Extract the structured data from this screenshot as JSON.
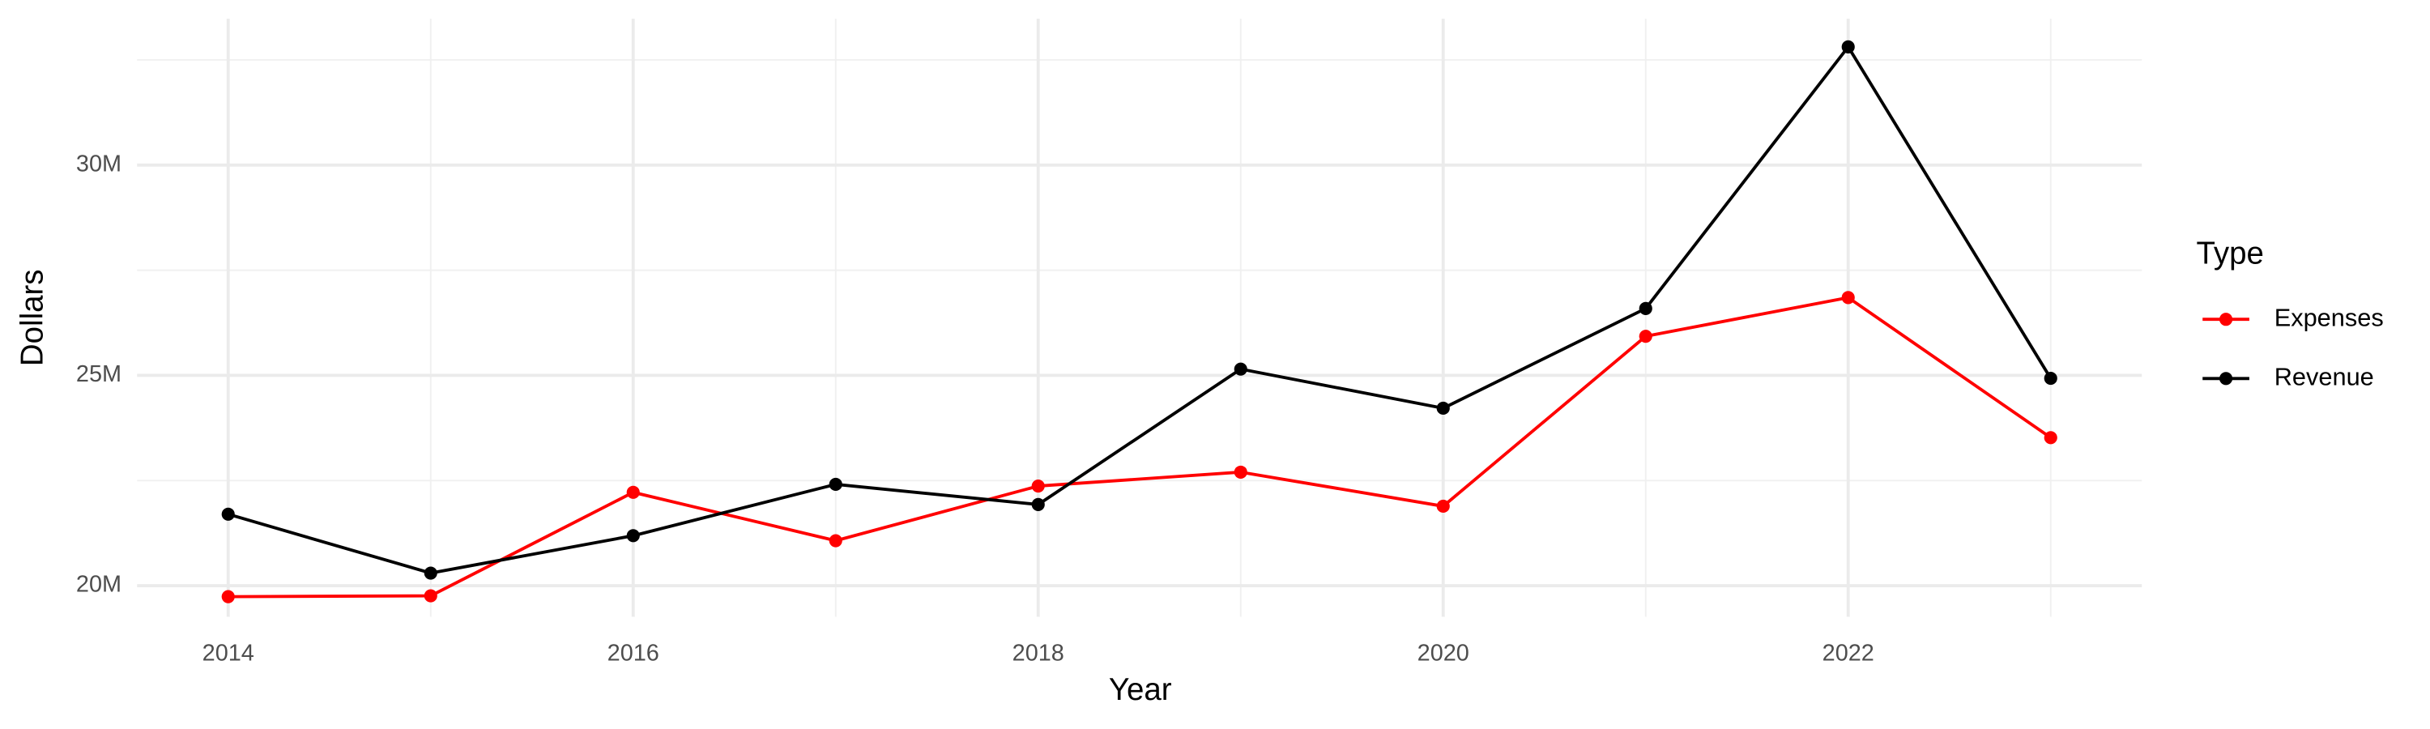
{
  "chart_data": {
    "type": "line",
    "x_label": "Year",
    "y_label": "Dollars",
    "x": [
      2014,
      2015,
      2016,
      2017,
      2018,
      2019,
      2020,
      2021,
      2022,
      2023
    ],
    "series": [
      {
        "name": "Expenses",
        "color": "#ff0000",
        "values": [
          19740000,
          19760000,
          22220000,
          21070000,
          22370000,
          22700000,
          21890000,
          25930000,
          26850000,
          23520000
        ]
      },
      {
        "name": "Revenue",
        "color": "#000000",
        "values": [
          21700000,
          20300000,
          21190000,
          22410000,
          21930000,
          25150000,
          24220000,
          26590000,
          32810000,
          24930000
        ]
      }
    ],
    "xlim": [
      2013.55,
      2023.45
    ],
    "xticks": [
      2014,
      2016,
      2018,
      2020,
      2022
    ],
    "ylim": [
      19260000,
      33480000
    ],
    "yticks": [
      {
        "value": 20000000,
        "label": "20M"
      },
      {
        "value": 25000000,
        "label": "25M"
      },
      {
        "value": 30000000,
        "label": "30M"
      }
    ],
    "grid": true,
    "legend": {
      "title": "Type",
      "position": "right"
    }
  }
}
